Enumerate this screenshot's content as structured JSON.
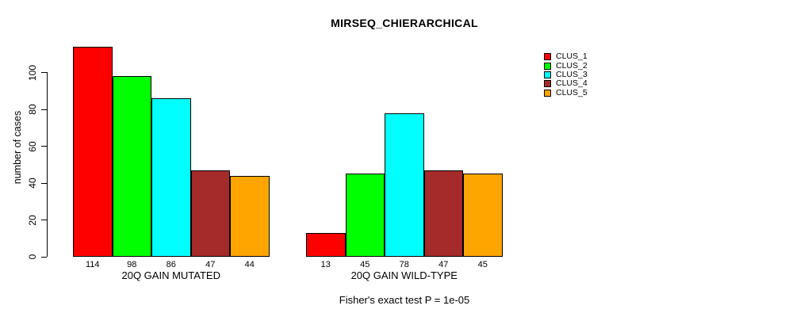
{
  "title": "MIRSEQ_CHIERARCHICAL",
  "footer": "Fisher's exact test P = 1e-05",
  "legend": {
    "items": [
      {
        "label": "CLUS_1",
        "color": "#FF0000"
      },
      {
        "label": "CLUS_2",
        "color": "#00FF00"
      },
      {
        "label": "CLUS_3",
        "color": "#00FFFF"
      },
      {
        "label": "CLUS_4",
        "color": "#A52A2A"
      },
      {
        "label": "CLUS_5",
        "color": "#FFA500"
      }
    ]
  },
  "chart_data": {
    "type": "bar",
    "title": "MIRSEQ_CHIERARCHICAL",
    "xlabel": "",
    "ylabel": "number of cases",
    "yticks": [
      0,
      20,
      40,
      60,
      80,
      100
    ],
    "ylim": [
      0,
      114
    ],
    "grid": false,
    "legend_position": "right",
    "legend_labels": [
      "CLUS_1",
      "CLUS_2",
      "CLUS_3",
      "CLUS_4",
      "CLUS_5"
    ],
    "series_colors": [
      "#FF0000",
      "#00FF00",
      "#00FFFF",
      "#A52A2A",
      "#FFA500"
    ],
    "groups": [
      {
        "label": "20Q GAIN MUTATED",
        "values": [
          114,
          98,
          86,
          47,
          44
        ]
      },
      {
        "label": "20Q GAIN WILD-TYPE",
        "values": [
          13,
          45,
          78,
          47,
          45
        ]
      }
    ],
    "annotation": "Fisher's exact test P = 1e-05"
  }
}
